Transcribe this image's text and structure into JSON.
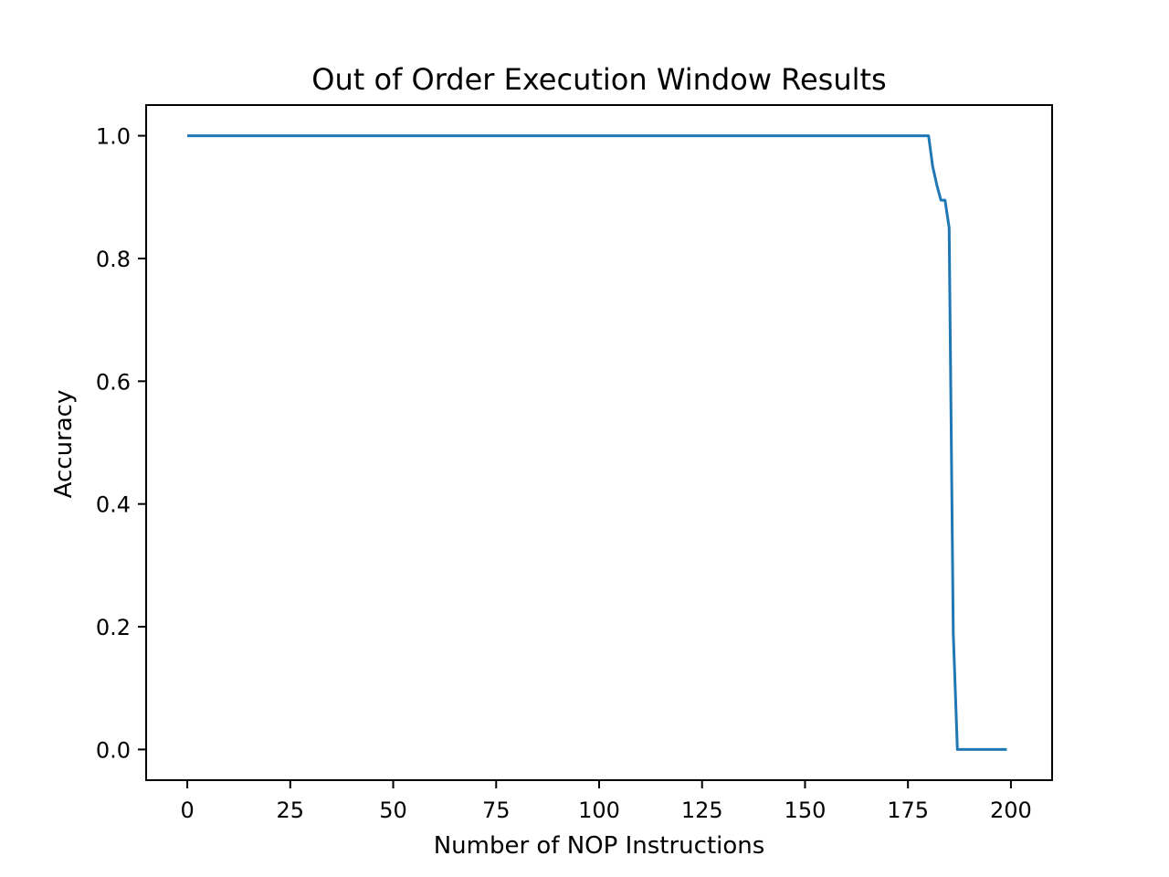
{
  "chart_data": {
    "type": "line",
    "title": "Out of Order Execution Window Results",
    "xlabel": "Number of NOP Instructions",
    "ylabel": "Accuracy",
    "xlim": [
      -10,
      210
    ],
    "ylim": [
      -0.05,
      1.05
    ],
    "xticks": [
      0,
      25,
      50,
      75,
      100,
      125,
      150,
      175,
      200
    ],
    "xtick_labels": [
      "0",
      "25",
      "50",
      "75",
      "100",
      "125",
      "150",
      "175",
      "200"
    ],
    "yticks": [
      0.0,
      0.2,
      0.4,
      0.6,
      0.8,
      1.0
    ],
    "ytick_labels": [
      "0.0",
      "0.2",
      "0.4",
      "0.6",
      "0.8",
      "1.0"
    ],
    "grid": false,
    "series": [
      {
        "color": "#1f77b4",
        "x": [
          0,
          180,
          181,
          182,
          183,
          184,
          185,
          186,
          187,
          188,
          199
        ],
        "y": [
          1.0,
          1.0,
          0.95,
          0.92,
          0.895,
          0.895,
          0.85,
          0.19,
          0.0,
          0.0,
          0.0
        ]
      }
    ]
  }
}
